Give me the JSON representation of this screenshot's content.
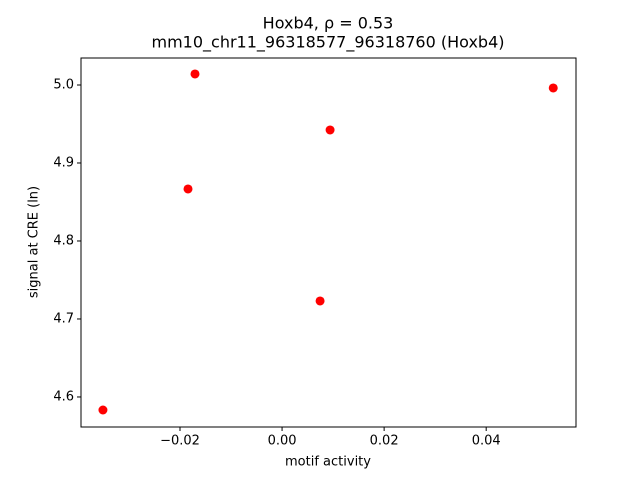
{
  "chart_data": {
    "type": "scatter",
    "title": "Hoxb4, ρ = 0.53",
    "subtitle": "mm10_chr11_96318577_96318760 (Hoxb4)",
    "x_label": "motif activity",
    "y_label": "signal at CRE (ln)",
    "series": [
      {
        "color": "#ff0000",
        "x": [
          -0.0351,
          -0.01706,
          -0.01843,
          0.00941,
          0.00745,
          0.05314
        ],
        "values": [
          4.5833,
          5.0141,
          4.8667,
          4.9423,
          4.7231,
          4.9962
        ]
      }
    ],
    "xlim": [
      -0.0394,
      0.0576
    ],
    "ylim": [
      4.5615,
      5.0346
    ],
    "xticks": [
      {
        "value": -0.02,
        "label": "−0.02"
      },
      {
        "value": 0,
        "label": "0.00"
      },
      0.02,
      0.04
    ],
    "yticks": [
      4.6,
      4.7,
      4.8,
      4.9,
      {
        "value": 5.0,
        "label": "5.0"
      }
    ],
    "grid": false
  }
}
